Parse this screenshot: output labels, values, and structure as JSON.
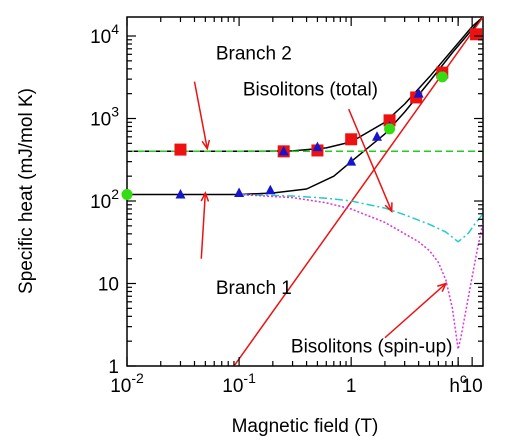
{
  "chart_data": {
    "type": "scatter",
    "xlabel": "Magnetic field (T)",
    "ylabel": "Specific heat (mJ/mol K)",
    "x_scale": "log",
    "y_scale": "log",
    "xlim": [
      0.01,
      15
    ],
    "ylim": [
      1,
      17000
    ],
    "grid": false,
    "x_ticks": [
      {
        "value": 0.01,
        "base": "10",
        "exp": "-2"
      },
      {
        "value": 0.1,
        "base": "10",
        "exp": "-1"
      },
      {
        "value": 1,
        "base": "1",
        "exp": ""
      },
      {
        "value": 9,
        "base": "h",
        "exp": "c"
      },
      {
        "value": 12,
        "base": "10",
        "exp": ""
      }
    ],
    "y_ticks": [
      {
        "value": 1,
        "base": "1",
        "exp": ""
      },
      {
        "value": 10,
        "base": "10",
        "exp": ""
      },
      {
        "value": 100,
        "base": "10",
        "exp": "2"
      },
      {
        "value": 1000,
        "base": "10",
        "exp": "3"
      },
      {
        "value": 10000,
        "base": "10",
        "exp": "4"
      }
    ],
    "colors": {
      "squares": "#ee1111",
      "triangles": "#1515cc",
      "circles": "#33dd11",
      "dashed_line": "#22cc22",
      "bisoliton_total": "#22cccc",
      "bisoliton_spin_up": "#dd33dd",
      "arrows": "#ee1111",
      "fit_lines": "#000000",
      "straight_line": "#ee1111"
    },
    "series": [
      {
        "marker": "square",
        "x": [
          0.03,
          0.25,
          0.5,
          1.0,
          2.2,
          3.8,
          6.5,
          13
        ],
        "y": [
          420,
          400,
          410,
          560,
          950,
          1800,
          3600,
          10500
        ]
      },
      {
        "marker": "triangle",
        "x": [
          0.03,
          0.1,
          0.19,
          0.25,
          0.5,
          1.0,
          1.7,
          2.2,
          4.0,
          6.5
        ],
        "y": [
          120,
          125,
          135,
          400,
          450,
          300,
          600,
          800,
          2000,
          3300
        ]
      },
      {
        "marker": "circle",
        "x": [
          0.01,
          2.2,
          6.5
        ],
        "y": [
          120,
          750,
          3200
        ]
      },
      {
        "kind": "curve",
        "x": [
          0.01,
          0.1,
          0.3,
          0.6,
          1.0,
          2.0,
          3.0,
          5.0,
          8.0,
          12.0,
          15.0
        ],
        "y": [
          400,
          400,
          405,
          440,
          520,
          900,
          1500,
          3200,
          6800,
          13000,
          17000
        ]
      },
      {
        "kind": "curve",
        "x": [
          0.01,
          0.1,
          0.2,
          0.4,
          0.7,
          1.0,
          2.0,
          3.0,
          5.0,
          8.0,
          12.0,
          15.0
        ],
        "y": [
          120,
          120,
          125,
          140,
          200,
          300,
          650,
          1200,
          2800,
          6300,
          12000,
          17000
        ]
      },
      {
        "kind": "dashed",
        "x": [
          0.01,
          15
        ],
        "y": [
          400,
          400
        ]
      },
      {
        "kind": "line",
        "x": [
          0.09,
          15
        ],
        "y": [
          1,
          17000
        ]
      },
      {
        "kind": "dash-dot",
        "x": [
          0.1,
          0.3,
          0.6,
          1.0,
          2.0,
          3.0,
          5.0,
          7.0,
          9.0,
          11.0,
          13.0,
          15.0
        ],
        "y": [
          120,
          115,
          108,
          100,
          82,
          68,
          52,
          42,
          32,
          40,
          55,
          70
        ]
      },
      {
        "kind": "dotted",
        "x": [
          0.1,
          0.3,
          0.6,
          1.0,
          2.0,
          3.0,
          4.0,
          5.0,
          6.0,
          7.0,
          8.0,
          8.6,
          9.0,
          9.5,
          10.5,
          12.0,
          13.5,
          15.0
        ],
        "y": [
          120,
          110,
          95,
          80,
          55,
          40,
          32,
          25,
          18,
          11,
          5,
          2.5,
          1.6,
          2.2,
          4.5,
          12,
          28,
          55
        ]
      }
    ],
    "annotations": [
      {
        "text": "Branch 2",
        "x": 0.062,
        "y": 5200
      },
      {
        "text": "Bisolitons (total)",
        "x": 0.108,
        "y": 1900
      },
      {
        "text": "Branch 1",
        "x": 0.062,
        "y": 7.5
      },
      {
        "text": "Bisolitons (spin-up)",
        "x": 0.29,
        "y": 1.45
      }
    ],
    "arrows": [
      {
        "from": [
          0.04,
          2800
        ],
        "to": [
          0.052,
          430
        ]
      },
      {
        "from": [
          0.95,
          1300
        ],
        "to": [
          2.3,
          75
        ]
      },
      {
        "from": [
          0.046,
          20
        ],
        "to": [
          0.05,
          125
        ]
      },
      {
        "from": [
          2.0,
          2.2
        ],
        "to": [
          7.0,
          10
        ]
      }
    ]
  }
}
